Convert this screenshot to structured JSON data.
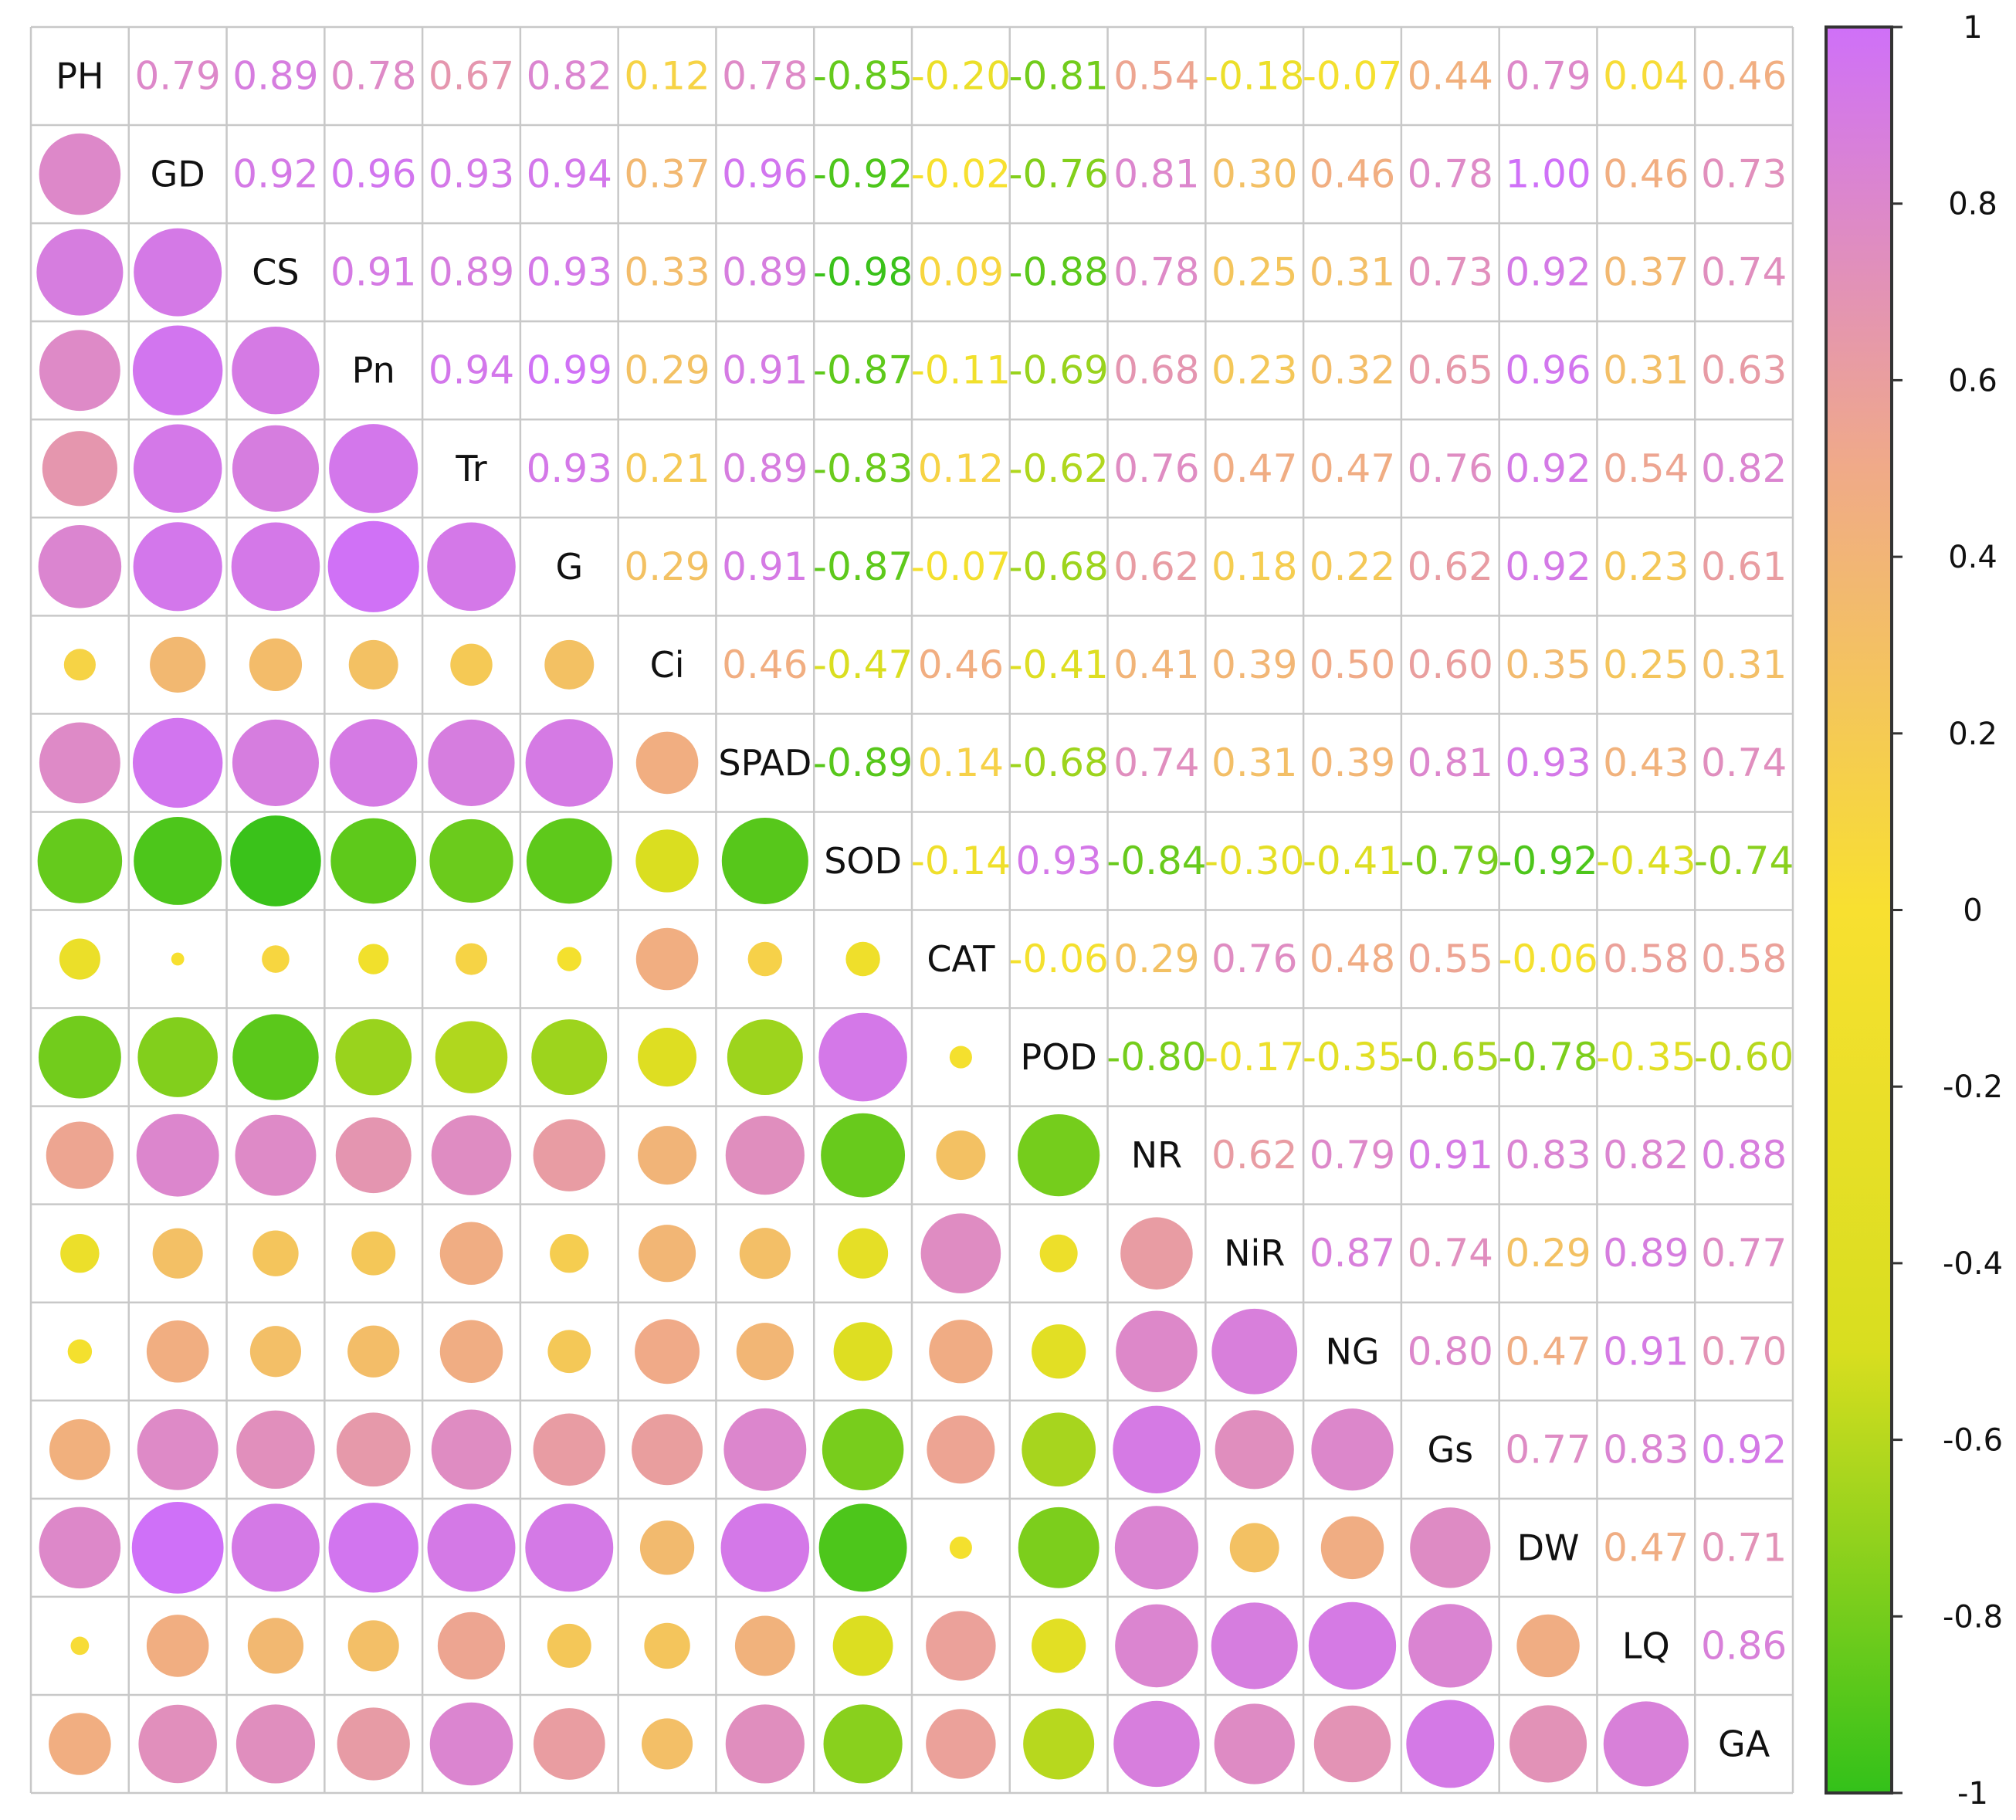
{
  "chart_data": {
    "type": "heatmap",
    "variables": [
      "PH",
      "GD",
      "CS",
      "Pn",
      "Tr",
      "G",
      "Ci",
      "SPAD",
      "SOD",
      "CAT",
      "POD",
      "NR",
      "NiR",
      "NG",
      "Gs",
      "DW",
      "LQ",
      "GA"
    ],
    "upper_triangle": [
      [
        "0.79",
        "0.89",
        "0.78",
        "0.67",
        "0.82",
        "0.12",
        "0.78",
        "-0.85",
        "-0.20",
        "-0.81",
        "0.54",
        "-0.18",
        "-0.07",
        "0.44",
        "0.79",
        "0.04",
        "0.46"
      ],
      [
        "0.92",
        "0.96",
        "0.93",
        "0.94",
        "0.37",
        "0.96",
        "-0.92",
        "-0.02",
        "-0.76",
        "0.81",
        "0.30",
        "0.46",
        "0.78",
        "1.00",
        "0.46",
        "0.73"
      ],
      [
        "0.91",
        "0.89",
        "0.93",
        "0.33",
        "0.89",
        "-0.98",
        "0.09",
        "-0.88",
        "0.78",
        "0.25",
        "0.31",
        "0.73",
        "0.92",
        "0.37",
        "0.74"
      ],
      [
        "0.94",
        "0.99",
        "0.29",
        "0.91",
        "-0.87",
        "-0.11",
        "-0.69",
        "0.68",
        "0.23",
        "0.32",
        "0.65",
        "0.96",
        "0.31",
        "0.63"
      ],
      [
        "0.93",
        "0.21",
        "0.89",
        "-0.83",
        "0.12",
        "-0.62",
        "0.76",
        "0.47",
        "0.47",
        "0.76",
        "0.92",
        "0.54",
        "0.82"
      ],
      [
        "0.29",
        "0.91",
        "-0.87",
        "-0.07",
        "-0.68",
        "0.62",
        "0.18",
        "0.22",
        "0.62",
        "0.92",
        "0.23",
        "0.61"
      ],
      [
        "0.46",
        "-0.47",
        "0.46",
        "-0.41",
        "0.41",
        "0.39",
        "0.50",
        "0.60",
        "0.35",
        "0.25",
        "0.31"
      ],
      [
        "-0.89",
        "0.14",
        "-0.68",
        "0.74",
        "0.31",
        "0.39",
        "0.81",
        "0.93",
        "0.43",
        "0.74"
      ],
      [
        "-0.14",
        "0.93",
        "-0.84",
        "-0.30",
        "-0.41",
        "-0.79",
        "-0.92",
        "-0.43",
        "-0.74"
      ],
      [
        "-0.06",
        "0.29",
        "0.76",
        "0.48",
        "0.55",
        "-0.06",
        "0.58",
        "0.58"
      ],
      [
        "-0.80",
        "-0.17",
        "-0.35",
        "-0.65",
        "-0.78",
        "-0.35",
        "-0.60"
      ],
      [
        "0.62",
        "0.79",
        "0.91",
        "0.83",
        "0.82",
        "0.88"
      ],
      [
        "0.87",
        "0.74",
        "0.29",
        "0.89",
        "0.77"
      ],
      [
        "0.80",
        "0.47",
        "0.91",
        "0.70"
      ],
      [
        "0.77",
        "0.83",
        "0.92"
      ],
      [
        "0.47",
        "0.71"
      ],
      [
        "0.86"
      ],
      []
    ],
    "colorbar": {
      "range": [
        -1,
        1
      ],
      "tick_labels": [
        "1",
        "0.8",
        "0.6",
        "0.4",
        "0.2",
        "0",
        "-0.2",
        "-0.4",
        "-0.6",
        "-0.8",
        "-1"
      ],
      "colors": [
        "#33c11a",
        "#d8de1f",
        "#f8e030",
        "#f0aa88",
        "#cf70f8"
      ]
    },
    "title": "",
    "xlabel": "",
    "ylabel": "",
    "grid": true
  }
}
